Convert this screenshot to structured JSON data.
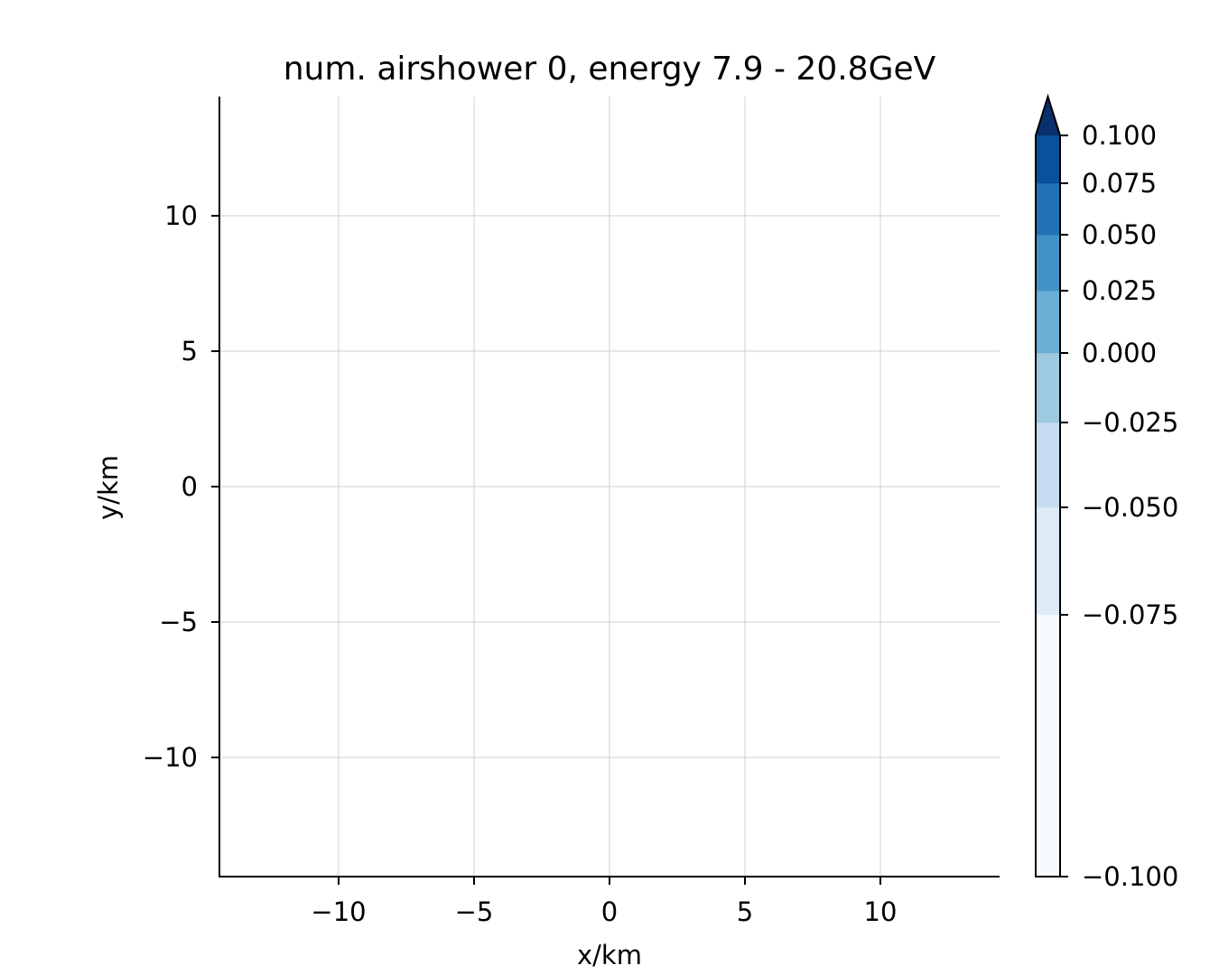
{
  "chart_data": {
    "type": "heatmap",
    "title": "num. airshower 0, energy 7.9 - 20.8GeV",
    "xlabel": "x/km",
    "ylabel": "y/km",
    "xlim": [
      -14.4,
      14.4
    ],
    "ylim": [
      -14.4,
      14.4
    ],
    "xticks": [
      -10,
      -5,
      0,
      5,
      10
    ],
    "xtick_labels": [
      "−10",
      "−5",
      "0",
      "5",
      "10"
    ],
    "yticks": [
      10,
      5,
      0,
      -5,
      -10
    ],
    "ytick_labels": [
      "10",
      "5",
      "0",
      "−5",
      "−10"
    ],
    "grid": true,
    "values": [],
    "colorbar": {
      "colormap": "Blues",
      "extend": "max",
      "colors": [
        "#f7fbff",
        "#deebf7",
        "#c6dbef",
        "#9ecae1",
        "#6baed6",
        "#4292c6",
        "#2171b5",
        "#08519c",
        "#08306b"
      ],
      "boundaries": [
        -0.1,
        -0.075,
        -0.05,
        -0.025,
        0.0,
        0.025,
        0.05,
        0.075,
        0.1
      ],
      "ticks": [
        0.1,
        0.075,
        0.05,
        0.025,
        0.0,
        -0.025,
        -0.05,
        -0.075,
        -0.1
      ],
      "tick_labels": [
        "0.100",
        "0.075",
        "0.050",
        "0.025",
        "0.000",
        "−0.025",
        "−0.050",
        "−0.075",
        "−0.100"
      ]
    }
  }
}
